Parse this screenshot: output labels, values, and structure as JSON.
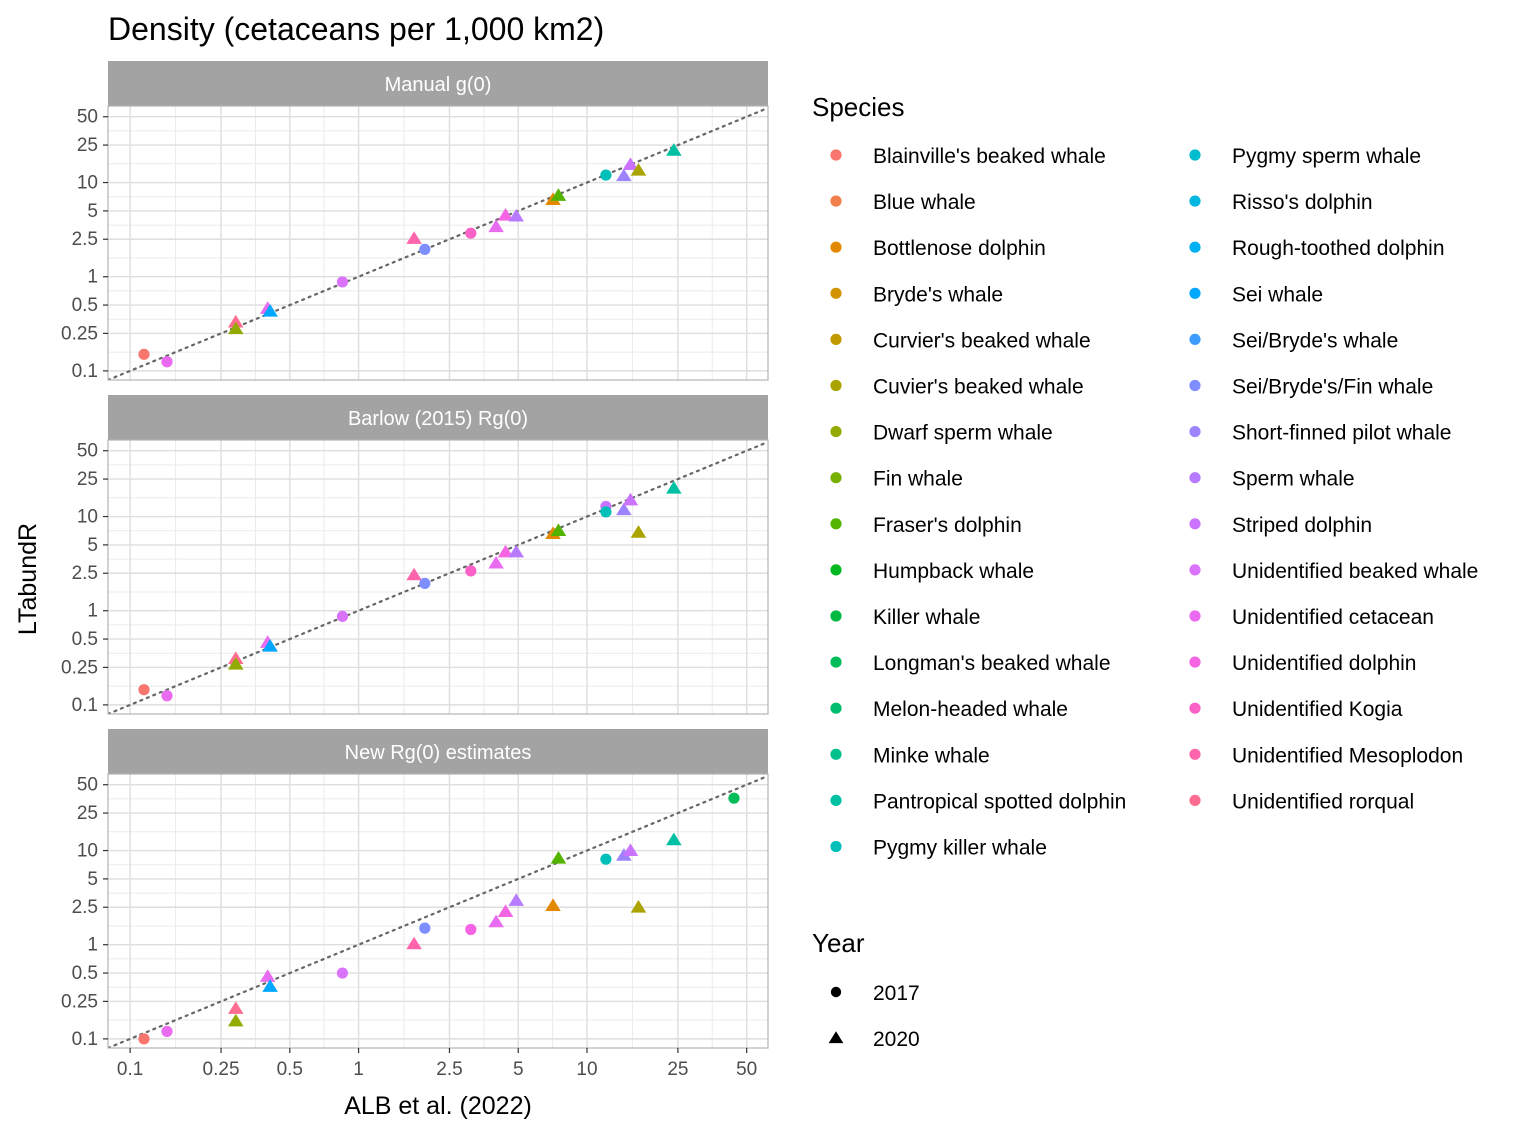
{
  "chart_data": {
    "type": "scatter",
    "title": "Density (cetaceans per 1,000 km2)",
    "xlabel": "ALB et al. (2022)",
    "ylabel": "LTabundR",
    "x_scale": "log10",
    "y_scale": "log10",
    "x_ticks": [
      "0.1",
      "0.25",
      "0.5",
      "1",
      "2.5",
      "5",
      "10",
      "25",
      "50"
    ],
    "y_ticks": [
      "0.1",
      "0.25",
      "0.5",
      "1",
      "2.5",
      "5",
      "10",
      "25",
      "50"
    ],
    "reference_line": "y = x (dotted)",
    "grid": true,
    "legend_position": "right",
    "species_legend": {
      "title": "Species",
      "items": [
        {
          "label": "Blainville's beaked whale",
          "color": "#F8766D"
        },
        {
          "label": "Blue whale",
          "color": "#F07F4B"
        },
        {
          "label": "Bottlenose dolphin",
          "color": "#E38900"
        },
        {
          "label": "Bryde's whale",
          "color": "#D39200"
        },
        {
          "label": "Curvier's beaked whale",
          "color": "#C09B00"
        },
        {
          "label": "Cuvier's beaked whale",
          "color": "#ABA300"
        },
        {
          "label": "Dwarf sperm whale",
          "color": "#93AA00"
        },
        {
          "label": "Fin whale",
          "color": "#78B000"
        },
        {
          "label": "Fraser's dolphin",
          "color": "#53B400"
        },
        {
          "label": "Humpback whale",
          "color": "#00B81F"
        },
        {
          "label": "Killer whale",
          "color": "#00BA42"
        },
        {
          "label": "Longman's beaked whale",
          "color": "#00BC59"
        },
        {
          "label": "Melon-headed whale",
          "color": "#00BE6D"
        },
        {
          "label": "Minke whale",
          "color": "#00C08B"
        },
        {
          "label": "Pantropical spotted dolphin",
          "color": "#00C0A3"
        },
        {
          "label": "Pygmy killer whale",
          "color": "#00BFB9"
        },
        {
          "label": "Pygmy sperm whale",
          "color": "#00BCCD"
        },
        {
          "label": "Risso's dolphin",
          "color": "#00B7E0"
        },
        {
          "label": "Rough-toothed dolphin",
          "color": "#00B0F0"
        },
        {
          "label": "Sei whale",
          "color": "#00A7FF"
        },
        {
          "label": "Sei/Bryde's whale",
          "color": "#3D9CFF"
        },
        {
          "label": "Sei/Bryde's/Fin whale",
          "color": "#7E8EFF"
        },
        {
          "label": "Short-finned pilot whale",
          "color": "#9E83FF"
        },
        {
          "label": "Sperm whale",
          "color": "#B77BFF"
        },
        {
          "label": "Striped dolphin",
          "color": "#CB73FF"
        },
        {
          "label": "Unidentified beaked whale",
          "color": "#DB72FB"
        },
        {
          "label": "Unidentified cetacean",
          "color": "#E96BF0"
        },
        {
          "label": "Unidentified dolphin",
          "color": "#F564E3"
        },
        {
          "label": "Unidentified Kogia",
          "color": "#FB61C6"
        },
        {
          "label": "Unidentified Mesoplodon",
          "color": "#FF65AC"
        },
        {
          "label": "Unidentified rorqual",
          "color": "#FF6C91"
        }
      ]
    },
    "year_legend": {
      "title": "Year",
      "items": [
        {
          "label": "2017",
          "shape": "circle"
        },
        {
          "label": "2020",
          "shape": "triangle"
        }
      ]
    },
    "panels": [
      {
        "strip": "Manual g(0)",
        "points": [
          {
            "x": 0.115,
            "y": 0.15,
            "shape": "circle",
            "color": "#F8766D"
          },
          {
            "x": 0.145,
            "y": 0.125,
            "shape": "circle",
            "color": "#E96BF0"
          },
          {
            "x": 0.29,
            "y": 0.33,
            "shape": "triangle",
            "color": "#FF6C91"
          },
          {
            "x": 0.29,
            "y": 0.28,
            "shape": "triangle",
            "color": "#93AA00"
          },
          {
            "x": 0.4,
            "y": 0.46,
            "shape": "triangle",
            "color": "#E96BF0"
          },
          {
            "x": 0.41,
            "y": 0.43,
            "shape": "triangle",
            "color": "#00A7FF"
          },
          {
            "x": 0.85,
            "y": 0.88,
            "shape": "circle",
            "color": "#DB72FB"
          },
          {
            "x": 1.75,
            "y": 2.55,
            "shape": "triangle",
            "color": "#FF65AC"
          },
          {
            "x": 1.95,
            "y": 1.95,
            "shape": "circle",
            "color": "#7E8EFF"
          },
          {
            "x": 3.1,
            "y": 2.9,
            "shape": "circle",
            "color": "#FB61C6"
          },
          {
            "x": 4.0,
            "y": 3.4,
            "shape": "triangle",
            "color": "#E96BF0"
          },
          {
            "x": 4.4,
            "y": 4.5,
            "shape": "triangle",
            "color": "#F564E3"
          },
          {
            "x": 4.9,
            "y": 4.4,
            "shape": "triangle",
            "color": "#B77BFF"
          },
          {
            "x": 7.1,
            "y": 6.6,
            "shape": "triangle",
            "color": "#E38900"
          },
          {
            "x": 7.5,
            "y": 7.3,
            "shape": "triangle",
            "color": "#53B400"
          },
          {
            "x": 12.1,
            "y": 12.0,
            "shape": "circle",
            "color": "#00BFB9"
          },
          {
            "x": 14.5,
            "y": 11.8,
            "shape": "triangle",
            "color": "#9E83FF"
          },
          {
            "x": 15.5,
            "y": 15.5,
            "shape": "triangle",
            "color": "#CB73FF"
          },
          {
            "x": 16.8,
            "y": 13.5,
            "shape": "triangle",
            "color": "#ABA300"
          },
          {
            "x": 24.0,
            "y": 22.0,
            "shape": "triangle",
            "color": "#00C0A3"
          }
        ]
      },
      {
        "strip": "Barlow (2015) Rg(0)",
        "points": [
          {
            "x": 0.115,
            "y": 0.145,
            "shape": "circle",
            "color": "#F8766D"
          },
          {
            "x": 0.145,
            "y": 0.125,
            "shape": "circle",
            "color": "#E96BF0"
          },
          {
            "x": 0.29,
            "y": 0.31,
            "shape": "triangle",
            "color": "#FF6C91"
          },
          {
            "x": 0.29,
            "y": 0.27,
            "shape": "triangle",
            "color": "#93AA00"
          },
          {
            "x": 0.4,
            "y": 0.46,
            "shape": "triangle",
            "color": "#E96BF0"
          },
          {
            "x": 0.41,
            "y": 0.42,
            "shape": "triangle",
            "color": "#00A7FF"
          },
          {
            "x": 0.85,
            "y": 0.87,
            "shape": "circle",
            "color": "#DB72FB"
          },
          {
            "x": 1.75,
            "y": 2.4,
            "shape": "triangle",
            "color": "#FF65AC"
          },
          {
            "x": 1.95,
            "y": 1.95,
            "shape": "circle",
            "color": "#7E8EFF"
          },
          {
            "x": 3.1,
            "y": 2.65,
            "shape": "circle",
            "color": "#FB61C6"
          },
          {
            "x": 4.0,
            "y": 3.2,
            "shape": "triangle",
            "color": "#E96BF0"
          },
          {
            "x": 4.4,
            "y": 4.2,
            "shape": "triangle",
            "color": "#F564E3"
          },
          {
            "x": 4.9,
            "y": 4.2,
            "shape": "triangle",
            "color": "#B77BFF"
          },
          {
            "x": 7.1,
            "y": 6.6,
            "shape": "triangle",
            "color": "#E38900"
          },
          {
            "x": 7.5,
            "y": 7.1,
            "shape": "triangle",
            "color": "#53B400"
          },
          {
            "x": 12.1,
            "y": 12.8,
            "shape": "circle",
            "color": "#CB73FF"
          },
          {
            "x": 12.1,
            "y": 11.2,
            "shape": "circle",
            "color": "#00BFB9"
          },
          {
            "x": 14.5,
            "y": 11.8,
            "shape": "triangle",
            "color": "#9E83FF"
          },
          {
            "x": 15.5,
            "y": 15.0,
            "shape": "triangle",
            "color": "#CB73FF"
          },
          {
            "x": 16.8,
            "y": 6.8,
            "shape": "triangle",
            "color": "#ABA300"
          },
          {
            "x": 24.0,
            "y": 20.0,
            "shape": "triangle",
            "color": "#00C0A3"
          }
        ]
      },
      {
        "strip": "New Rg(0) estimates",
        "points": [
          {
            "x": 0.115,
            "y": 0.1,
            "shape": "circle",
            "color": "#F8766D"
          },
          {
            "x": 0.145,
            "y": 0.12,
            "shape": "circle",
            "color": "#E96BF0"
          },
          {
            "x": 0.29,
            "y": 0.21,
            "shape": "triangle",
            "color": "#FF6C91"
          },
          {
            "x": 0.29,
            "y": 0.155,
            "shape": "triangle",
            "color": "#93AA00"
          },
          {
            "x": 0.4,
            "y": 0.46,
            "shape": "triangle",
            "color": "#E96BF0"
          },
          {
            "x": 0.41,
            "y": 0.36,
            "shape": "triangle",
            "color": "#00A7FF"
          },
          {
            "x": 0.85,
            "y": 0.5,
            "shape": "circle",
            "color": "#DB72FB"
          },
          {
            "x": 1.75,
            "y": 1.02,
            "shape": "triangle",
            "color": "#FF65AC"
          },
          {
            "x": 1.95,
            "y": 1.5,
            "shape": "circle",
            "color": "#7E8EFF"
          },
          {
            "x": 3.1,
            "y": 1.45,
            "shape": "circle",
            "color": "#F564E3"
          },
          {
            "x": 4.0,
            "y": 1.75,
            "shape": "triangle",
            "color": "#E96BF0"
          },
          {
            "x": 4.4,
            "y": 2.25,
            "shape": "triangle",
            "color": "#F564E3"
          },
          {
            "x": 4.9,
            "y": 2.95,
            "shape": "triangle",
            "color": "#B77BFF"
          },
          {
            "x": 7.1,
            "y": 2.6,
            "shape": "triangle",
            "color": "#E38900"
          },
          {
            "x": 7.5,
            "y": 8.3,
            "shape": "triangle",
            "color": "#53B400"
          },
          {
            "x": 12.1,
            "y": 8.1,
            "shape": "circle",
            "color": "#00BFB9"
          },
          {
            "x": 14.5,
            "y": 8.9,
            "shape": "triangle",
            "color": "#9E83FF"
          },
          {
            "x": 15.5,
            "y": 10.0,
            "shape": "triangle",
            "color": "#CB73FF"
          },
          {
            "x": 16.8,
            "y": 2.5,
            "shape": "triangle",
            "color": "#ABA300"
          },
          {
            "x": 24.0,
            "y": 13.0,
            "shape": "triangle",
            "color": "#00C0A3"
          },
          {
            "x": 44.0,
            "y": 36.0,
            "shape": "circle",
            "color": "#00BC59"
          }
        ]
      }
    ]
  }
}
